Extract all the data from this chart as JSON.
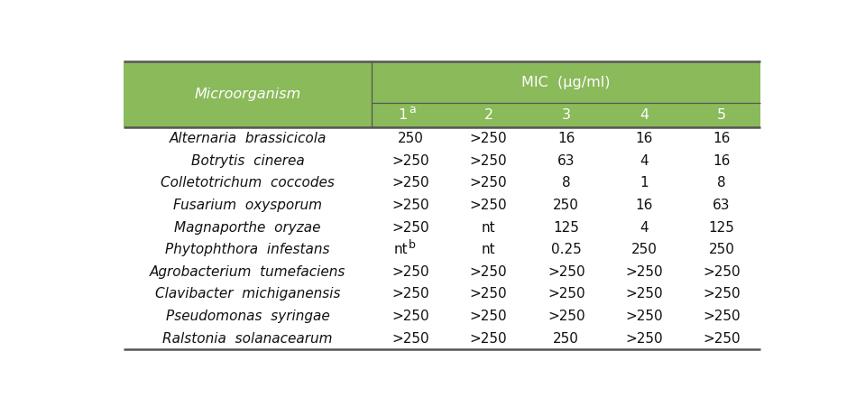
{
  "header_bg_color": "#8aba5a",
  "header_text_color": "#ffffff",
  "body_bg_color": "#ffffff",
  "body_text_color": "#111111",
  "line_color": "#555555",
  "col_header_main": "MIC  (μg/ml)",
  "col_header_sub": [
    "1",
    "2",
    "3",
    "4",
    "5"
  ],
  "col1_label": "Microorganism",
  "rows": [
    [
      "Alternaria  brassicicola",
      "250",
      ">250",
      "16",
      "16",
      "16"
    ],
    [
      "Botrytis  cinerea",
      ">250",
      ">250",
      "63",
      "4",
      "16"
    ],
    [
      "Colletotrichum  coccodes",
      ">250",
      ">250",
      "8",
      "1",
      "8"
    ],
    [
      "Fusarium  oxysporum",
      ">250",
      ">250",
      "250",
      "16",
      "63"
    ],
    [
      "Magnaporthe  oryzae",
      ">250",
      "nt",
      "125",
      "4",
      "125"
    ],
    [
      "Phytophthora  infestans",
      "ntb",
      "nt",
      "0.25",
      "250",
      "250"
    ],
    [
      "Agrobacterium  tumefaciens",
      ">250",
      ">250",
      ">250",
      ">250",
      ">250"
    ],
    [
      "Clavibacter  michiganensis",
      ">250",
      ">250",
      ">250",
      ">250",
      ">250"
    ],
    [
      "Pseudomonas  syringae",
      ">250",
      ">250",
      ">250",
      ">250",
      ">250"
    ],
    [
      "Ralstonia  solanacearum",
      ">250",
      ">250",
      "250",
      ">250",
      ">250"
    ]
  ],
  "figsize": [
    9.49,
    4.51
  ],
  "dpi": 100,
  "font_size_header": 11.5,
  "font_size_body": 11,
  "font_size_sub": 9
}
